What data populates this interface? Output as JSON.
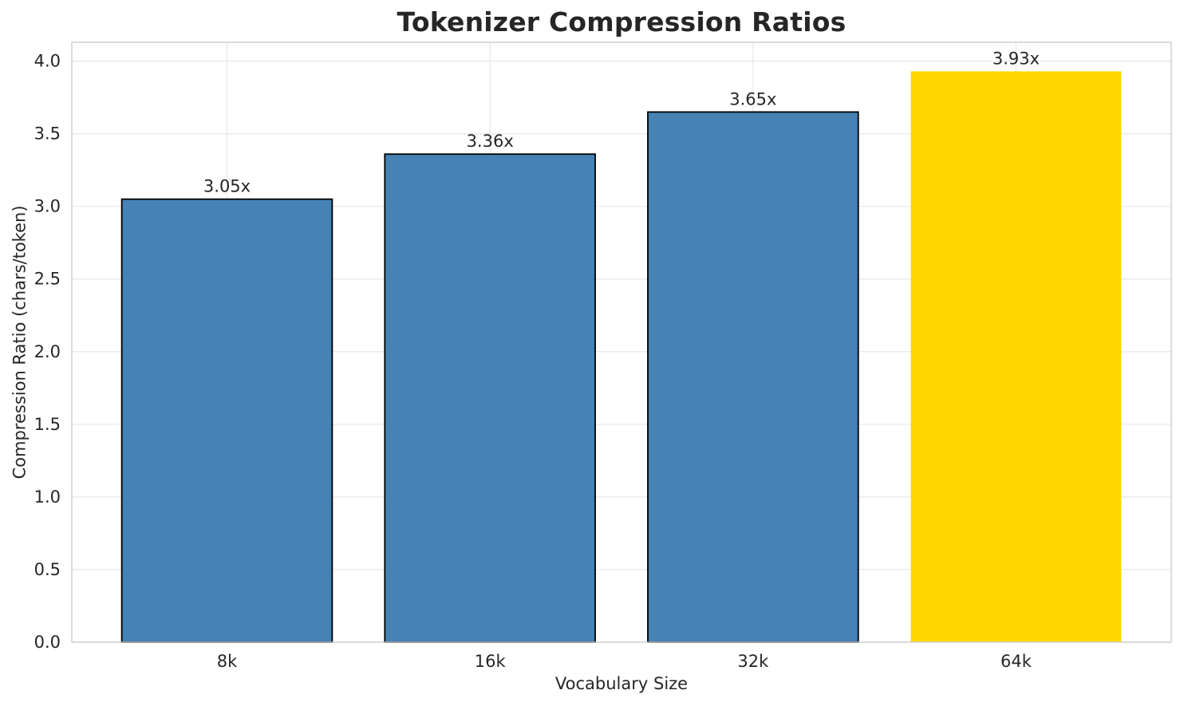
{
  "figure": {
    "title": "Tokenizer Compression Ratios",
    "xlabel": "Vocabulary Size",
    "ylabel": "Compression Ratio (chars/token)"
  },
  "chart_data": {
    "type": "bar",
    "title": "Tokenizer Compression Ratios",
    "xlabel": "Vocabulary Size",
    "ylabel": "Compression Ratio (chars/token)",
    "categories": [
      "8k",
      "16k",
      "32k",
      "64k"
    ],
    "values": [
      3.05,
      3.36,
      3.65,
      3.93
    ],
    "bar_labels": [
      "3.05x",
      "3.36x",
      "3.65x",
      "3.93x"
    ],
    "ylim": [
      0,
      4.13
    ],
    "yticks": [
      0.0,
      0.5,
      1.0,
      1.5,
      2.0,
      2.5,
      3.0,
      3.5,
      4.0
    ],
    "grid": true,
    "legend": false,
    "highlight_index": 3,
    "style": {
      "bar_colors": [
        "#4682b4",
        "#4682b4",
        "#4682b4",
        "#ffd700"
      ],
      "bar_edge_colors": [
        "#000000",
        "#000000",
        "#000000",
        "none"
      ],
      "bar_edge_width": 1.8,
      "grid_color": "#e9e9e9",
      "spine_color": "#cccccc",
      "text_color": "#262626",
      "background": "#ffffff"
    }
  }
}
